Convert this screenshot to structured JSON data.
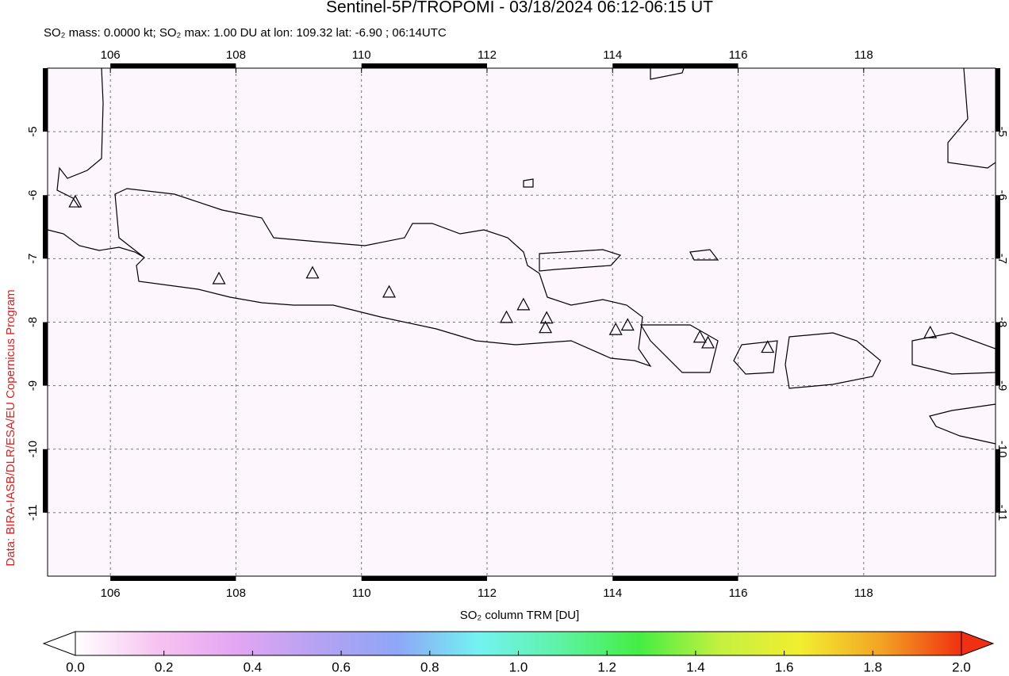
{
  "chart_data": {
    "type": "map",
    "title": "Sentinel-5P/TROPOMI - 03/18/2024 06:12-06:15 UT",
    "subtitle": "SO₂ mass: 0.0000 kt; SO₂ max: 1.00 DU at lon: 109.32 lat: -6.90 ; 06:14UTC",
    "credit": "Data: BIRA-IASB/DLR/ESA/EU Copernicus Program",
    "colorbar_label": "SO₂ column TRM [DU]",
    "xlim": [
      105,
      120.1
    ],
    "ylim": [
      -12,
      -4
    ],
    "xticks": [
      106,
      108,
      110,
      112,
      114,
      116,
      118
    ],
    "yticks": [
      -5,
      -6,
      -7,
      -8,
      -9,
      -10,
      -11
    ],
    "grid": true,
    "volcanoes": {
      "lon": [
        105.44,
        107.73,
        109.22,
        110.44,
        112.31,
        112.58,
        112.95,
        112.93,
        114.05,
        114.24,
        115.39,
        115.52,
        116.47,
        119.06
      ],
      "lat": [
        -6.11,
        -7.32,
        -7.23,
        -7.53,
        -7.93,
        -7.73,
        -7.94,
        -8.09,
        -8.12,
        -8.05,
        -8.24,
        -8.33,
        -8.4,
        -8.17
      ]
    },
    "colorbar": {
      "lim": [
        0,
        2
      ],
      "ticks": [
        {
          "value": 0,
          "label": "0.0"
        },
        0.2,
        0.4,
        0.6,
        0.8,
        {
          "value": 1,
          "label": "1.0"
        },
        1.2,
        1.4,
        1.6,
        1.8,
        {
          "value": 2,
          "label": "2.0"
        }
      ],
      "colors": [
        "#ffffff",
        "#f6c4f0",
        "#e2a6f2",
        "#b6a2f2",
        "#8ea6f6",
        "#74f2f2",
        "#5ef2a6",
        "#44ee44",
        "#c4f040",
        "#f2ee30",
        "#f2a424",
        "#f03010"
      ]
    }
  }
}
